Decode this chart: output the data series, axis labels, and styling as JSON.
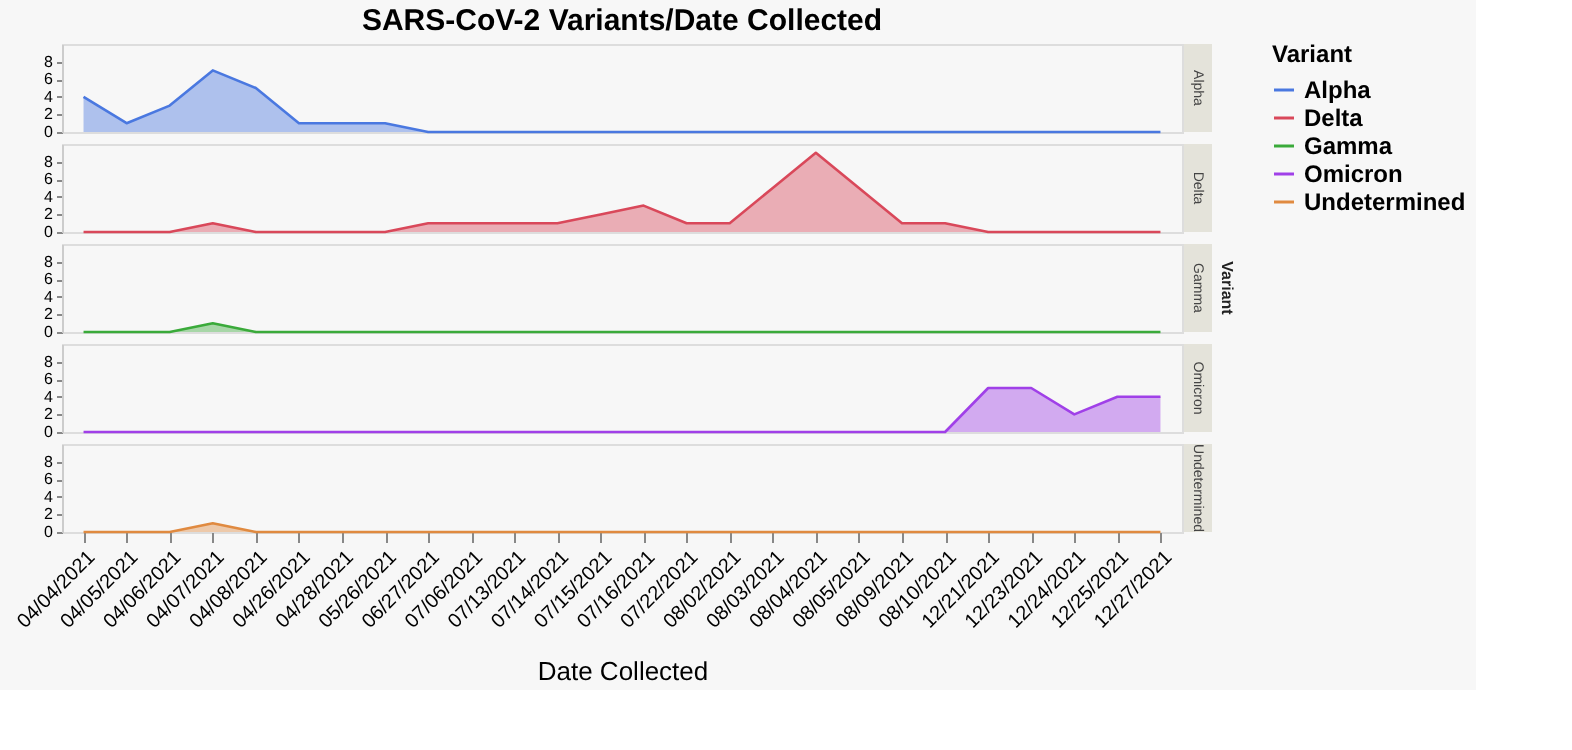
{
  "chart_data": [
    {
      "type": "area",
      "title": "SARS-CoV-2 Variants/Date Collected",
      "y2label": "Alpha",
      "legend_title": "Variant",
      "legend": "right",
      "grid": false,
      "tick_labels": "y",
      "ylim": [
        0,
        10
      ],
      "yticks": [
        0,
        2,
        4,
        6,
        8
      ],
      "categories": [
        "04/04/2021",
        "04/05/2021",
        "04/06/2021",
        "04/07/2021",
        "04/08/2021",
        "04/26/2021",
        "04/28/2021",
        "05/26/2021",
        "06/27/2021",
        "07/06/2021",
        "07/13/2021",
        "07/14/2021",
        "07/15/2021",
        "07/16/2021",
        "07/22/2021",
        "08/02/2021",
        "08/03/2021",
        "08/04/2021",
        "08/05/2021",
        "08/09/2021",
        "08/10/2021",
        "12/21/2021",
        "12/23/2021",
        "12/24/2021",
        "12/25/2021",
        "12/27/2021"
      ],
      "series": [
        {
          "name": "Alpha",
          "color": "#4a78e0",
          "values": [
            4,
            1,
            3,
            7,
            5,
            1,
            1,
            1,
            0,
            0,
            0,
            0,
            0,
            0,
            0,
            0,
            0,
            0,
            0,
            0,
            0,
            0,
            0,
            0,
            0,
            0
          ]
        }
      ]
    },
    {
      "type": "area",
      "y2label": "Delta",
      "grid": false,
      "tick_labels": "y",
      "ylim": [
        0,
        10
      ],
      "yticks": [
        0,
        2,
        4,
        6,
        8
      ],
      "categories": [
        "04/04/2021",
        "04/05/2021",
        "04/06/2021",
        "04/07/2021",
        "04/08/2021",
        "04/26/2021",
        "04/28/2021",
        "05/26/2021",
        "06/27/2021",
        "07/06/2021",
        "07/13/2021",
        "07/14/2021",
        "07/15/2021",
        "07/16/2021",
        "07/22/2021",
        "08/02/2021",
        "08/03/2021",
        "08/04/2021",
        "08/05/2021",
        "08/09/2021",
        "08/10/2021",
        "12/21/2021",
        "12/23/2021",
        "12/24/2021",
        "12/25/2021",
        "12/27/2021"
      ],
      "series": [
        {
          "name": "Delta",
          "color": "#d9485a",
          "values": [
            0,
            0,
            0,
            1,
            0,
            0,
            0,
            0,
            1,
            1,
            1,
            1,
            2,
            3,
            1,
            1,
            5,
            9,
            5,
            1,
            1,
            0,
            0,
            0,
            0,
            0
          ]
        }
      ]
    },
    {
      "type": "area",
      "y2label": "Gamma",
      "annotations": [
        "Variant"
      ],
      "grid": false,
      "tick_labels": "y",
      "ylim": [
        0,
        10
      ],
      "yticks": [
        0,
        2,
        4,
        6,
        8
      ],
      "categories": [
        "04/04/2021",
        "04/05/2021",
        "04/06/2021",
        "04/07/2021",
        "04/08/2021",
        "04/26/2021",
        "04/28/2021",
        "05/26/2021",
        "06/27/2021",
        "07/06/2021",
        "07/13/2021",
        "07/14/2021",
        "07/15/2021",
        "07/16/2021",
        "07/22/2021",
        "08/02/2021",
        "08/03/2021",
        "08/04/2021",
        "08/05/2021",
        "08/09/2021",
        "08/10/2021",
        "12/21/2021",
        "12/23/2021",
        "12/24/2021",
        "12/25/2021",
        "12/27/2021"
      ],
      "series": [
        {
          "name": "Gamma",
          "color": "#3aaa3a",
          "values": [
            0,
            0,
            0,
            1,
            0,
            0,
            0,
            0,
            0,
            0,
            0,
            0,
            0,
            0,
            0,
            0,
            0,
            0,
            0,
            0,
            0,
            0,
            0,
            0,
            0,
            0
          ]
        }
      ]
    },
    {
      "type": "area",
      "y2label": "Omicron",
      "grid": false,
      "tick_labels": "y",
      "ylim": [
        0,
        10
      ],
      "yticks": [
        0,
        2,
        4,
        6,
        8
      ],
      "categories": [
        "04/04/2021",
        "04/05/2021",
        "04/06/2021",
        "04/07/2021",
        "04/08/2021",
        "04/26/2021",
        "04/28/2021",
        "05/26/2021",
        "06/27/2021",
        "07/06/2021",
        "07/13/2021",
        "07/14/2021",
        "07/15/2021",
        "07/16/2021",
        "07/22/2021",
        "08/02/2021",
        "08/03/2021",
        "08/04/2021",
        "08/05/2021",
        "08/09/2021",
        "08/10/2021",
        "12/21/2021",
        "12/23/2021",
        "12/24/2021",
        "12/25/2021",
        "12/27/2021"
      ],
      "series": [
        {
          "name": "Omicron",
          "color": "#a040e8",
          "values": [
            0,
            0,
            0,
            0,
            0,
            0,
            0,
            0,
            0,
            0,
            0,
            0,
            0,
            0,
            0,
            0,
            0,
            0,
            0,
            0,
            0,
            5,
            5,
            2,
            4,
            4
          ]
        }
      ]
    },
    {
      "type": "area",
      "y2label": "Undetermined",
      "xlabel": "Date Collected",
      "grid": false,
      "ylim": [
        0,
        10
      ],
      "yticks": [
        0,
        2,
        4,
        6,
        8
      ],
      "categories": [
        "04/04/2021",
        "04/05/2021",
        "04/06/2021",
        "04/07/2021",
        "04/08/2021",
        "04/26/2021",
        "04/28/2021",
        "05/26/2021",
        "06/27/2021",
        "07/06/2021",
        "07/13/2021",
        "07/14/2021",
        "07/15/2021",
        "07/16/2021",
        "07/22/2021",
        "08/02/2021",
        "08/03/2021",
        "08/04/2021",
        "08/05/2021",
        "08/09/2021",
        "08/10/2021",
        "12/21/2021",
        "12/23/2021",
        "12/24/2021",
        "12/25/2021",
        "12/27/2021"
      ],
      "series": [
        {
          "name": "Undetermined",
          "color": "#e08a40",
          "values": [
            0,
            0,
            0,
            1,
            0,
            0,
            0,
            0,
            0,
            0,
            0,
            0,
            0,
            0,
            0,
            0,
            0,
            0,
            0,
            0,
            0,
            0,
            0,
            0,
            0,
            0
          ]
        }
      ]
    }
  ]
}
